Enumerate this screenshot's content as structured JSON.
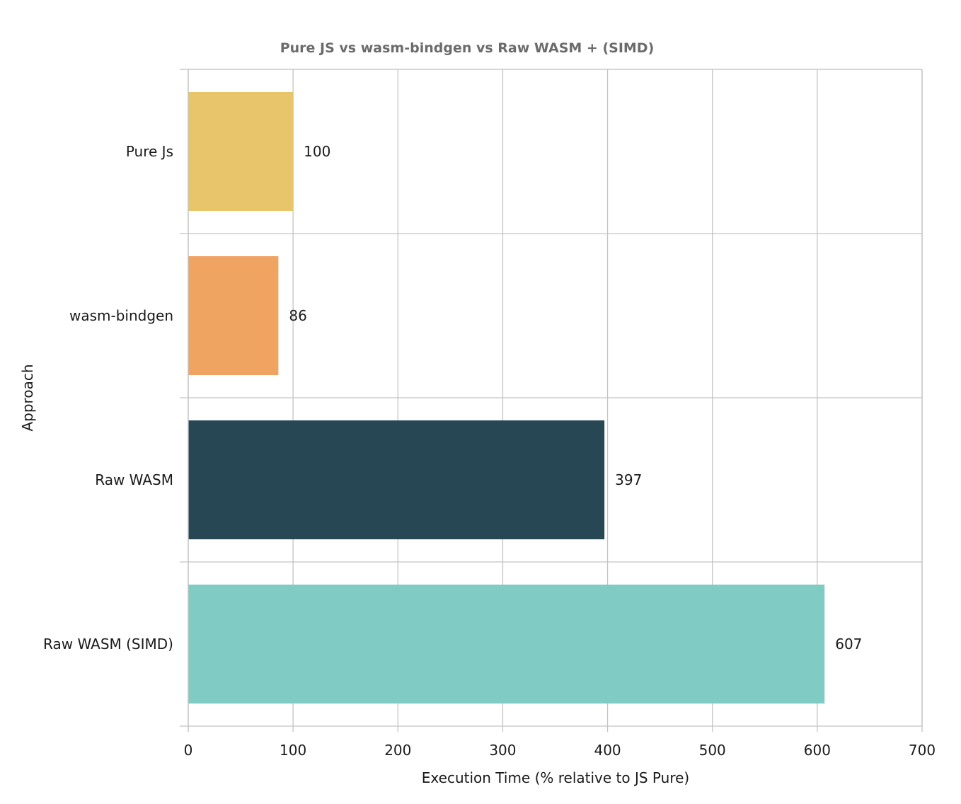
{
  "chart_data": {
    "type": "bar",
    "orientation": "horizontal",
    "title": "Pure JS vs wasm-bindgen vs Raw WASM + (SIMD)",
    "xlabel": "Execution Time (% relative to JS Pure)",
    "ylabel": "Approach",
    "categories": [
      "Pure Js",
      "wasm-bindgen",
      "Raw WASM",
      "Raw WASM (SIMD)"
    ],
    "values": [
      100,
      86,
      397,
      607
    ],
    "data_labels": [
      "100",
      "86",
      "397",
      "607"
    ],
    "colors": [
      "#e8c56a",
      "#f0a462",
      "#284754",
      "#80cbc3"
    ],
    "xlim": [
      0,
      700
    ],
    "xticks": [
      0,
      100,
      200,
      300,
      400,
      500,
      600,
      700
    ],
    "xtick_labels": [
      "0",
      "100",
      "200",
      "300",
      "400",
      "500",
      "600",
      "700"
    ],
    "grid": true,
    "legend": "none"
  }
}
